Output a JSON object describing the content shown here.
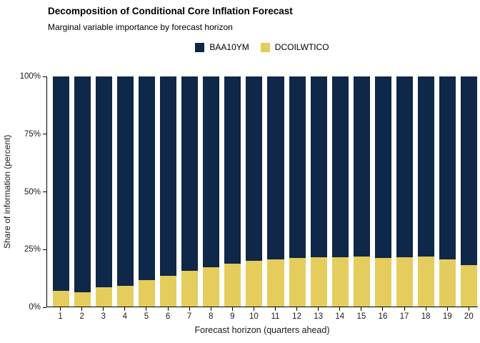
{
  "chart_data": {
    "type": "bar",
    "stacked": true,
    "title": "Decomposition of Conditional Core Inflation Forecast",
    "subtitle": "Marginal variable importance by forecast horizon",
    "xlabel": "Forecast horizon (quarters ahead)",
    "ylabel": "Share of information (percent)",
    "legend_position": "top-center",
    "grid": false,
    "ylim": [
      0,
      100
    ],
    "y_ticks": [
      {
        "value": 0,
        "label": "0%"
      },
      {
        "value": 25,
        "label": "25%"
      },
      {
        "value": 50,
        "label": "50%"
      },
      {
        "value": 75,
        "label": "75%"
      },
      {
        "value": 100,
        "label": "100%"
      }
    ],
    "categories": [
      "1",
      "2",
      "3",
      "4",
      "5",
      "6",
      "7",
      "8",
      "9",
      "10",
      "11",
      "12",
      "13",
      "14",
      "15",
      "16",
      "17",
      "18",
      "19",
      "20"
    ],
    "series": [
      {
        "name": "BAA10YM",
        "color": "#0f2748",
        "values": [
          93.2,
          93.8,
          91.7,
          91.0,
          88.6,
          86.5,
          84.4,
          82.9,
          81.4,
          80.2,
          79.4,
          79.0,
          78.5,
          78.6,
          78.2,
          79.0,
          78.7,
          78.4,
          79.5,
          82.0
        ]
      },
      {
        "name": "DCOILWTICO",
        "color": "#e4cd5c",
        "values": [
          6.8,
          6.2,
          8.3,
          9.0,
          11.4,
          13.5,
          15.6,
          17.1,
          18.6,
          19.8,
          20.6,
          21.0,
          21.5,
          21.4,
          21.8,
          21.0,
          21.3,
          21.6,
          20.5,
          18.0
        ]
      }
    ]
  }
}
